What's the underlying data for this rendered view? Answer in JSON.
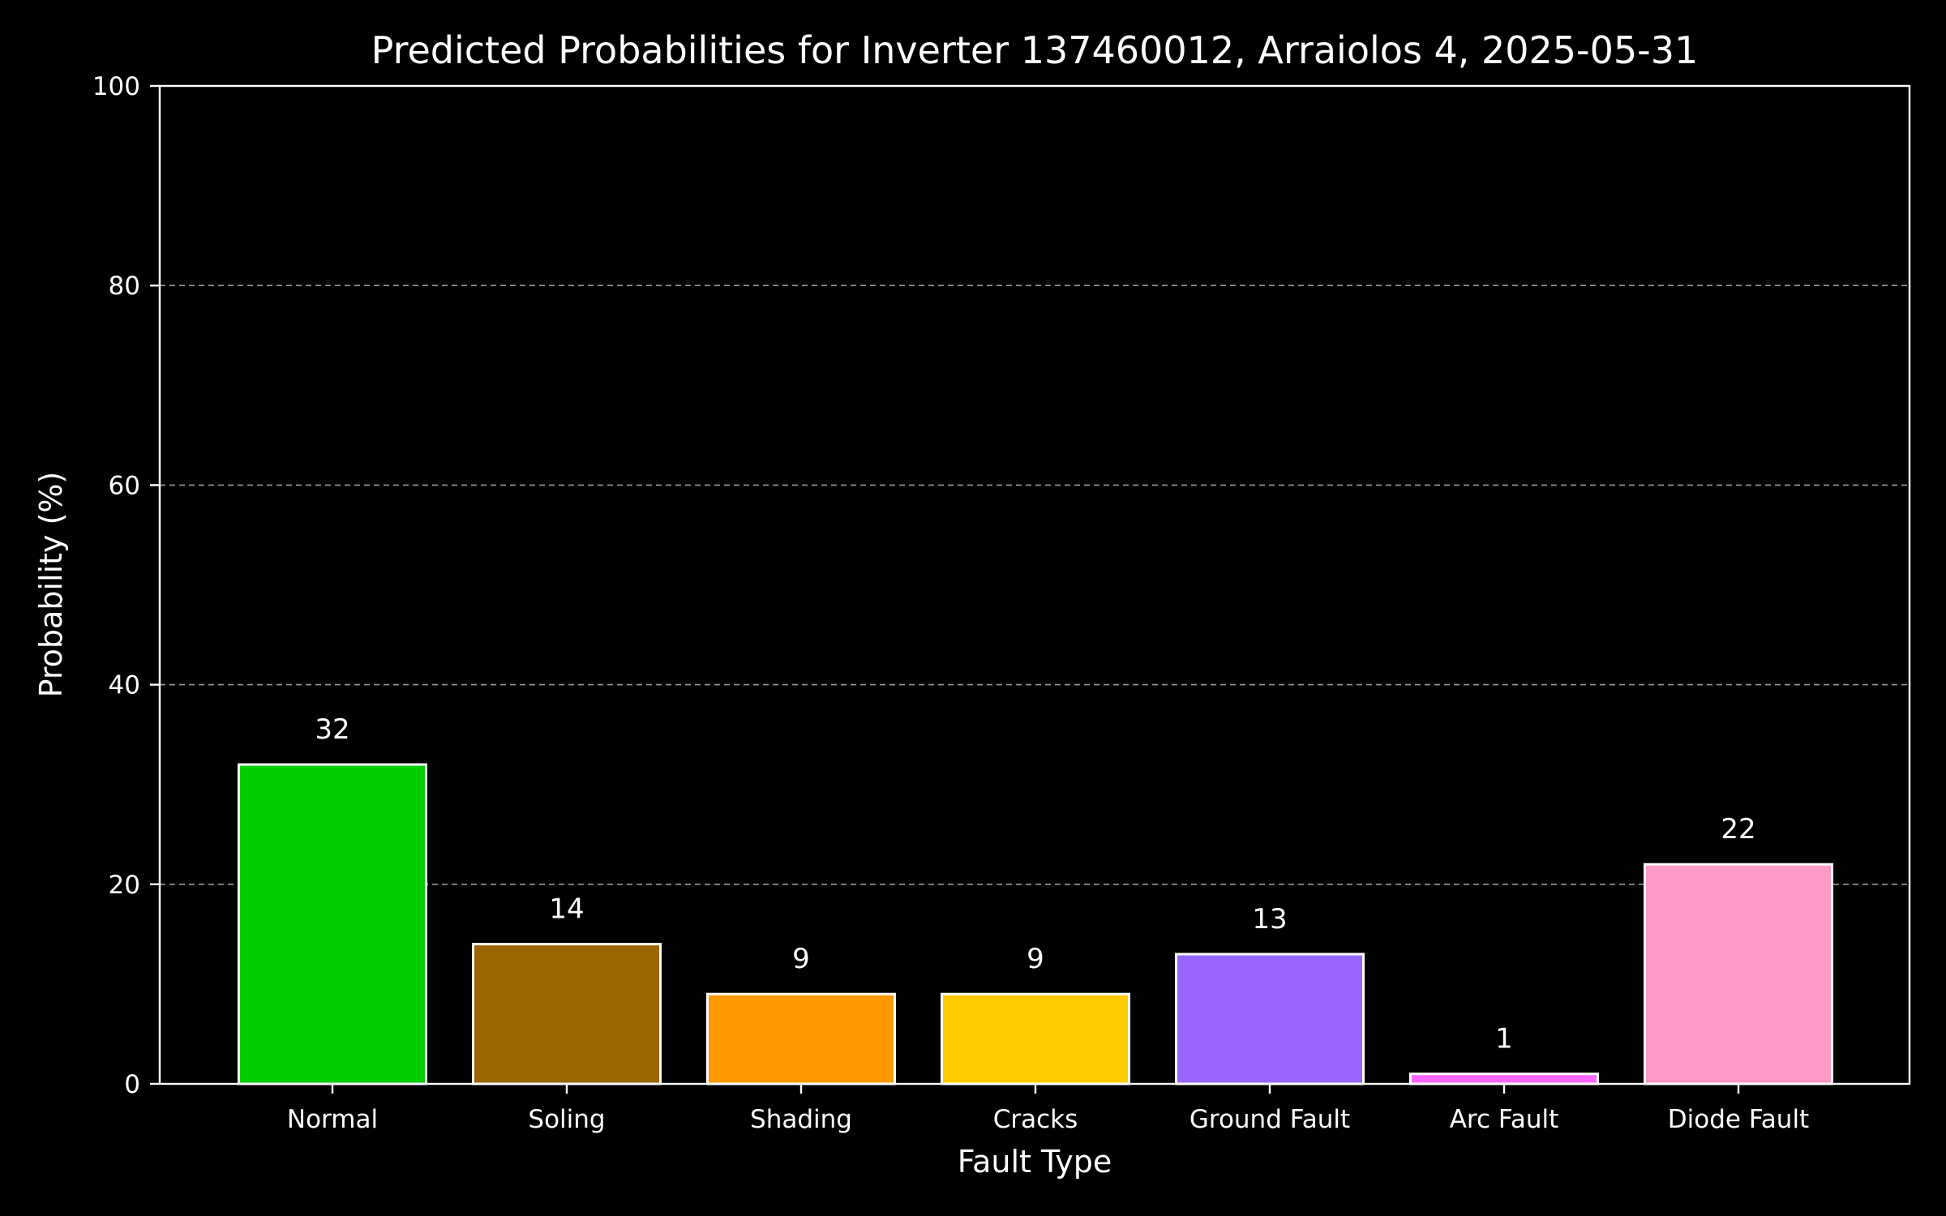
{
  "chart_data": {
    "type": "bar",
    "title": "Predicted Probabilities for Inverter 137460012, Arraiolos 4, 2025-05-31",
    "xlabel": "Fault Type",
    "ylabel": "Probability (%)",
    "ylim": [
      0,
      100
    ],
    "yticks": [
      0,
      20,
      40,
      60,
      80,
      100
    ],
    "grid": "y-dashed",
    "categories": [
      "Normal",
      "Soling",
      "Shading",
      "Cracks",
      "Ground Fault",
      "Arc Fault",
      "Diode Fault"
    ],
    "values": [
      32,
      14,
      9,
      9,
      13,
      1,
      22
    ],
    "data_labels": [
      "32",
      "14",
      "9",
      "9",
      "13",
      "1",
      "22"
    ],
    "colors": [
      "#00cc00",
      "#996600",
      "#ff9900",
      "#ffcc00",
      "#9966ff",
      "#ff66ff",
      "#ff99c8"
    ],
    "background": "#000000",
    "edge_color": "#ffffff"
  }
}
